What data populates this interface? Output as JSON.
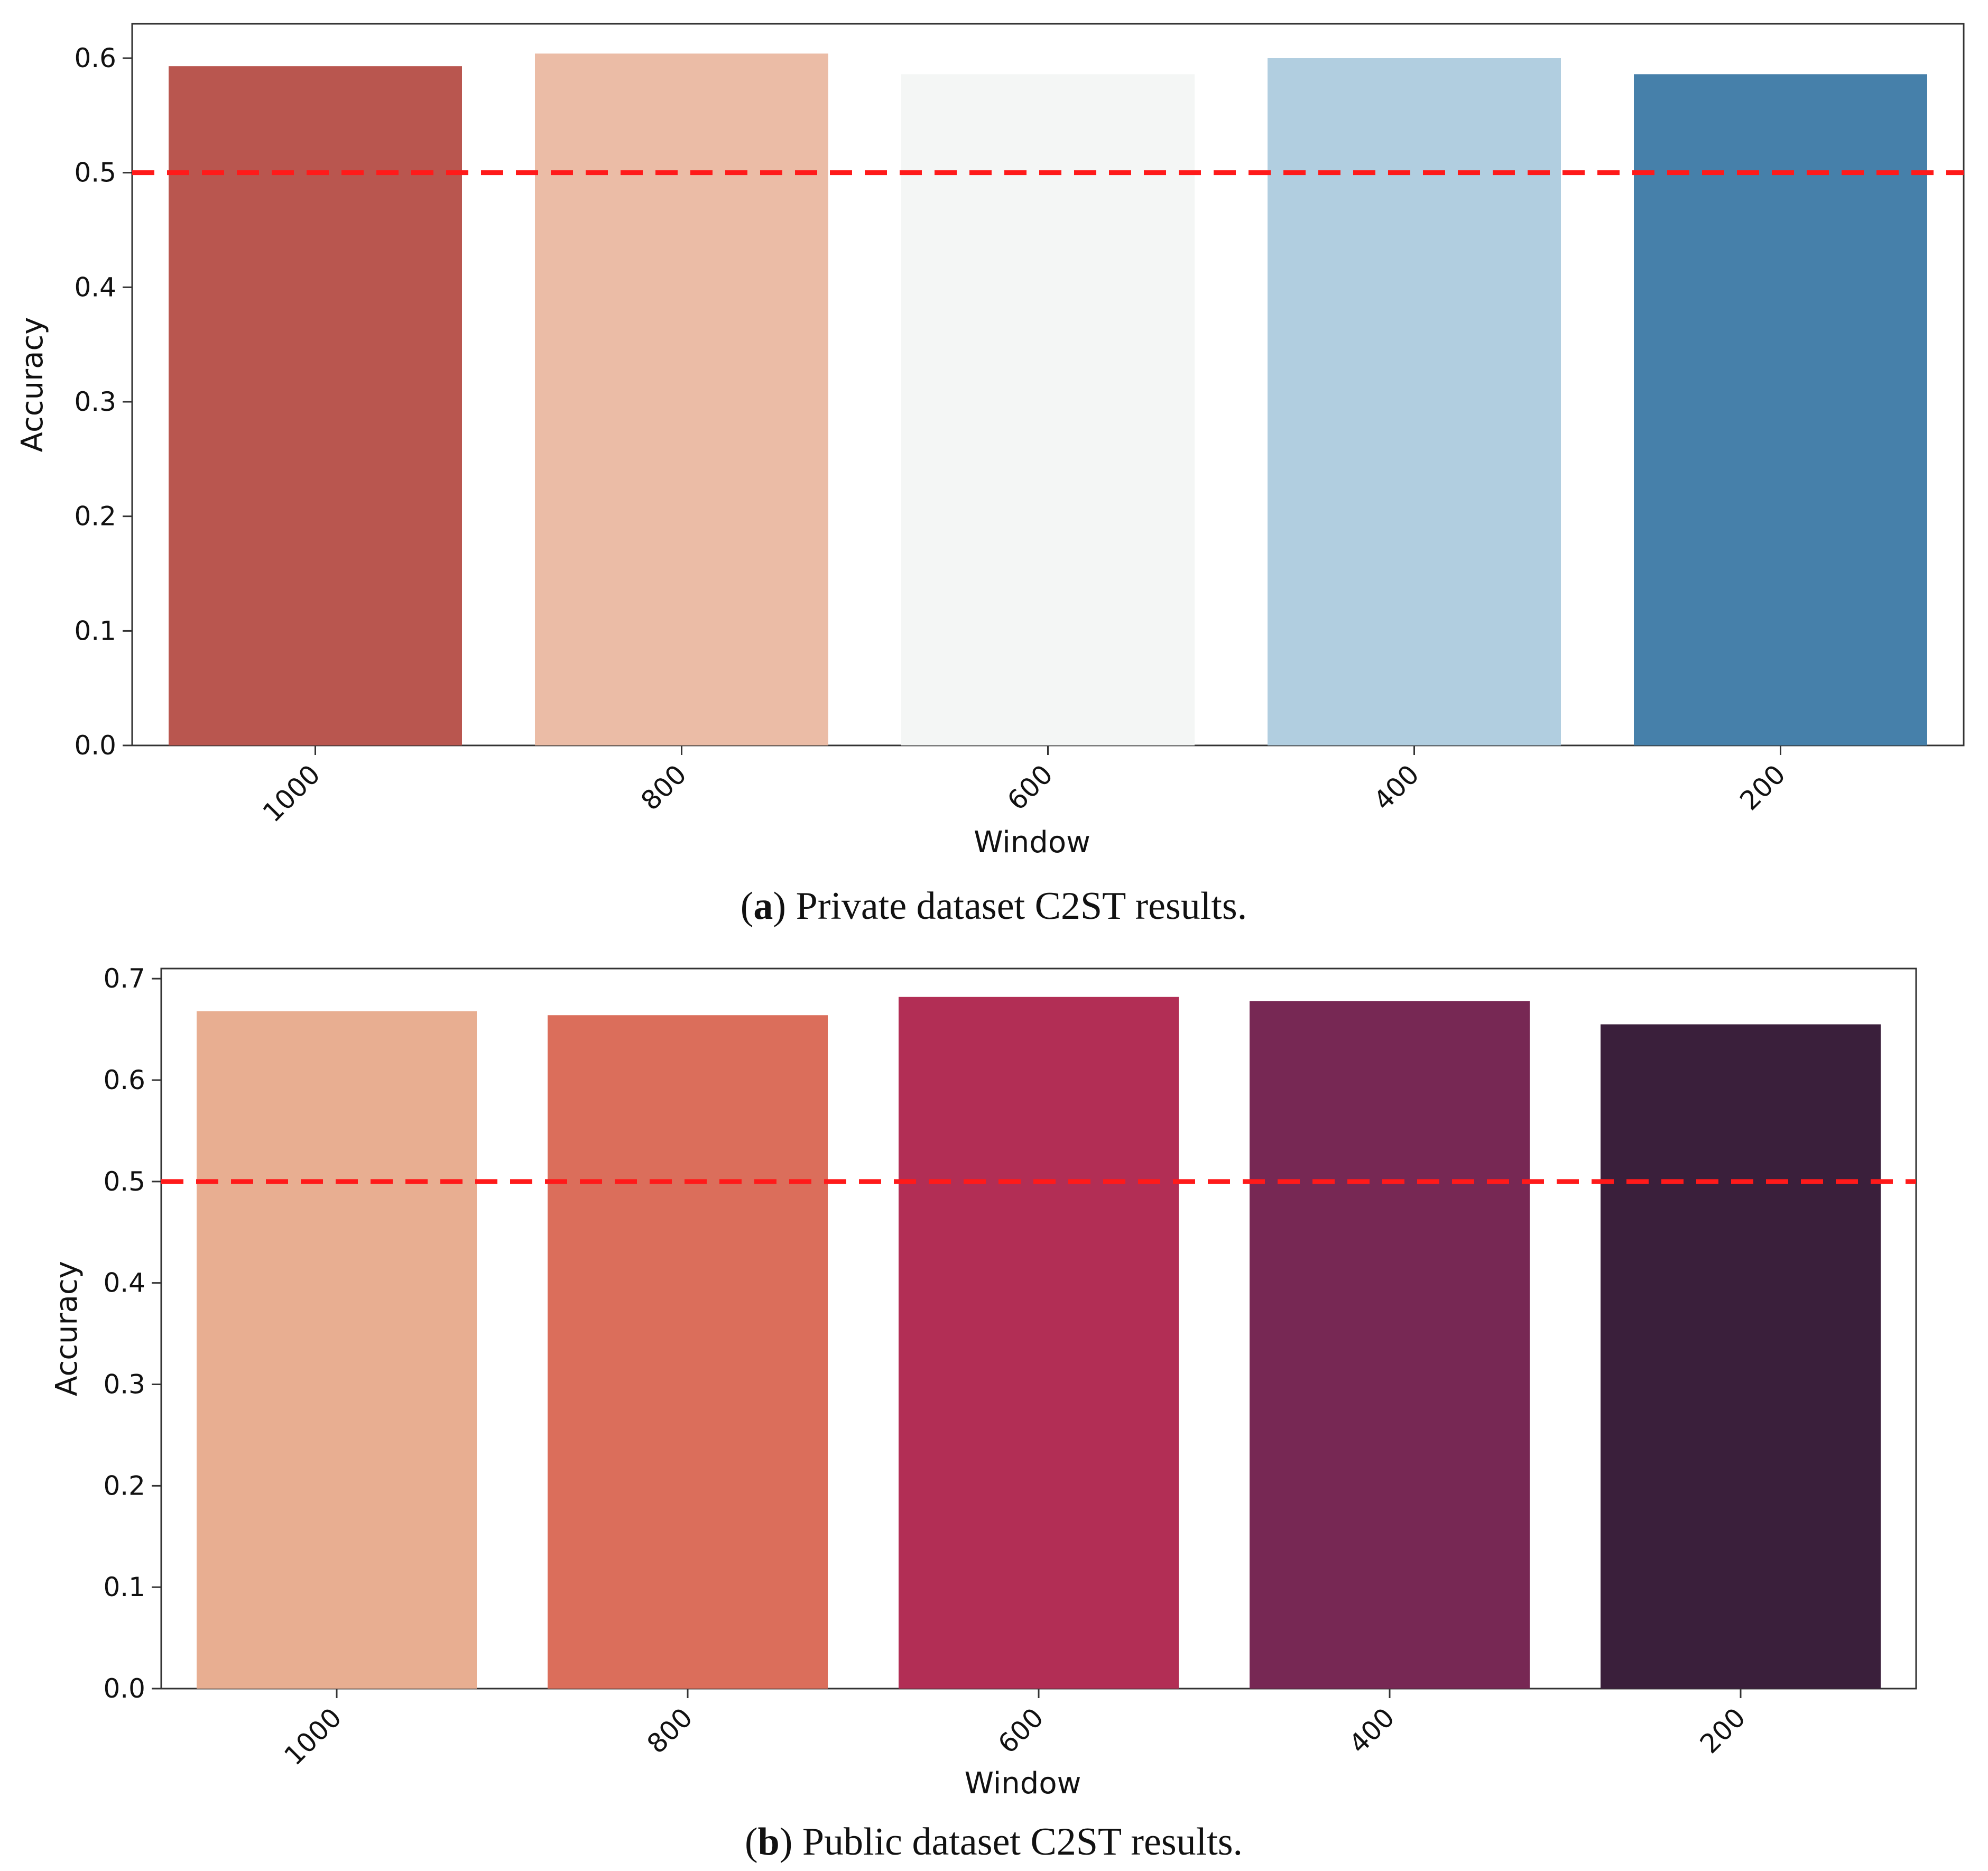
{
  "chart_data": [
    {
      "type": "bar",
      "categories": [
        "1000",
        "800",
        "600",
        "400",
        "200"
      ],
      "values": [
        0.593,
        0.604,
        0.586,
        0.6,
        0.586
      ],
      "colors": [
        "#b9564f",
        "#ebbca6",
        "#f4f6f5",
        "#b1cee0",
        "#4680aa"
      ],
      "xlabel": "Window",
      "ylabel": "Accuracy",
      "ylim": [
        0,
        0.63
      ],
      "yticks": [
        "0.0",
        "0.1",
        "0.2",
        "0.3",
        "0.4",
        "0.5",
        "0.6"
      ],
      "reference_line": {
        "value": 0.5,
        "color": "#ff1a1a",
        "style": "dashed"
      },
      "caption_tag": "a",
      "caption_text": "Private dataset C2ST results."
    },
    {
      "type": "bar",
      "categories": [
        "1000",
        "800",
        "600",
        "400",
        "200"
      ],
      "values": [
        0.668,
        0.664,
        0.682,
        0.678,
        0.655
      ],
      "colors": [
        "#e8ae91",
        "#db6e5b",
        "#b22e55",
        "#772854",
        "#3a1f3b"
      ],
      "xlabel": "Window",
      "ylabel": "Accuracy",
      "ylim": [
        0,
        0.71
      ],
      "yticks": [
        "0.0",
        "0.1",
        "0.2",
        "0.3",
        "0.4",
        "0.5",
        "0.6",
        "0.7"
      ],
      "reference_line": {
        "value": 0.5,
        "color": "#ff1a1a",
        "style": "dashed"
      },
      "caption_tag": "b",
      "caption_text": "Public dataset C2ST results."
    }
  ]
}
